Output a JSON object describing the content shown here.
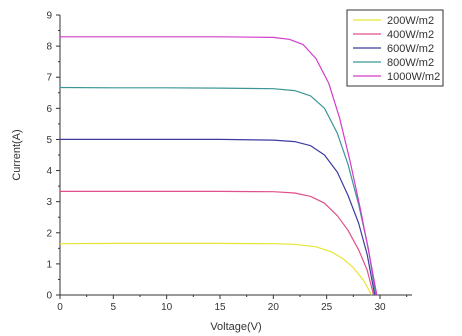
{
  "chart_data": {
    "type": "line",
    "xlabel": "Voltage(V)",
    "ylabel": "Current(A)",
    "xlim": [
      0,
      33
    ],
    "ylim": [
      0,
      9
    ],
    "xticks": [
      0,
      5,
      10,
      15,
      20,
      25,
      30
    ],
    "yticks": [
      0,
      1,
      2,
      3,
      4,
      5,
      6,
      7,
      8,
      9
    ],
    "grid": false,
    "legend_position": "top-right",
    "series": [
      {
        "name": "200W/m2",
        "color": "#e6e632",
        "points": [
          [
            0,
            1.65
          ],
          [
            5,
            1.66
          ],
          [
            10,
            1.66
          ],
          [
            15,
            1.66
          ],
          [
            20,
            1.65
          ],
          [
            22,
            1.63
          ],
          [
            24,
            1.55
          ],
          [
            25.5,
            1.38
          ],
          [
            26.5,
            1.17
          ],
          [
            27.5,
            0.88
          ],
          [
            28.5,
            0.45
          ],
          [
            29.2,
            0.0
          ]
        ]
      },
      {
        "name": "400W/m2",
        "color": "#e0508c",
        "points": [
          [
            0,
            3.33
          ],
          [
            5,
            3.33
          ],
          [
            10,
            3.33
          ],
          [
            15,
            3.33
          ],
          [
            20,
            3.32
          ],
          [
            22,
            3.28
          ],
          [
            23.5,
            3.17
          ],
          [
            24.8,
            2.95
          ],
          [
            26,
            2.55
          ],
          [
            27,
            2.08
          ],
          [
            28,
            1.45
          ],
          [
            28.8,
            0.8
          ],
          [
            29.4,
            0.0
          ]
        ]
      },
      {
        "name": "600W/m2",
        "color": "#3c3ca0",
        "points": [
          [
            0,
            5.0
          ],
          [
            5,
            5.0
          ],
          [
            10,
            5.0
          ],
          [
            15,
            5.0
          ],
          [
            20,
            4.98
          ],
          [
            22,
            4.93
          ],
          [
            23.5,
            4.8
          ],
          [
            24.8,
            4.5
          ],
          [
            26,
            3.95
          ],
          [
            27,
            3.2
          ],
          [
            28,
            2.3
          ],
          [
            28.8,
            1.3
          ],
          [
            29.5,
            0.0
          ]
        ]
      },
      {
        "name": "800W/m2",
        "color": "#3c9696",
        "points": [
          [
            0,
            6.67
          ],
          [
            5,
            6.66
          ],
          [
            10,
            6.66
          ],
          [
            15,
            6.65
          ],
          [
            20,
            6.63
          ],
          [
            22,
            6.57
          ],
          [
            23.5,
            6.4
          ],
          [
            24.8,
            6.0
          ],
          [
            26,
            5.2
          ],
          [
            27,
            4.2
          ],
          [
            28,
            2.9
          ],
          [
            28.9,
            1.5
          ],
          [
            29.6,
            0.0
          ]
        ]
      },
      {
        "name": "1000W/m2",
        "color": "#d23cc8",
        "points": [
          [
            0,
            8.3
          ],
          [
            5,
            8.3
          ],
          [
            10,
            8.3
          ],
          [
            15,
            8.3
          ],
          [
            20,
            8.28
          ],
          [
            21.5,
            8.22
          ],
          [
            22.8,
            8.05
          ],
          [
            24,
            7.6
          ],
          [
            25.2,
            6.8
          ],
          [
            26.2,
            5.7
          ],
          [
            27.2,
            4.3
          ],
          [
            28.2,
            2.7
          ],
          [
            29,
            1.3
          ],
          [
            29.7,
            0.0
          ]
        ]
      }
    ]
  }
}
